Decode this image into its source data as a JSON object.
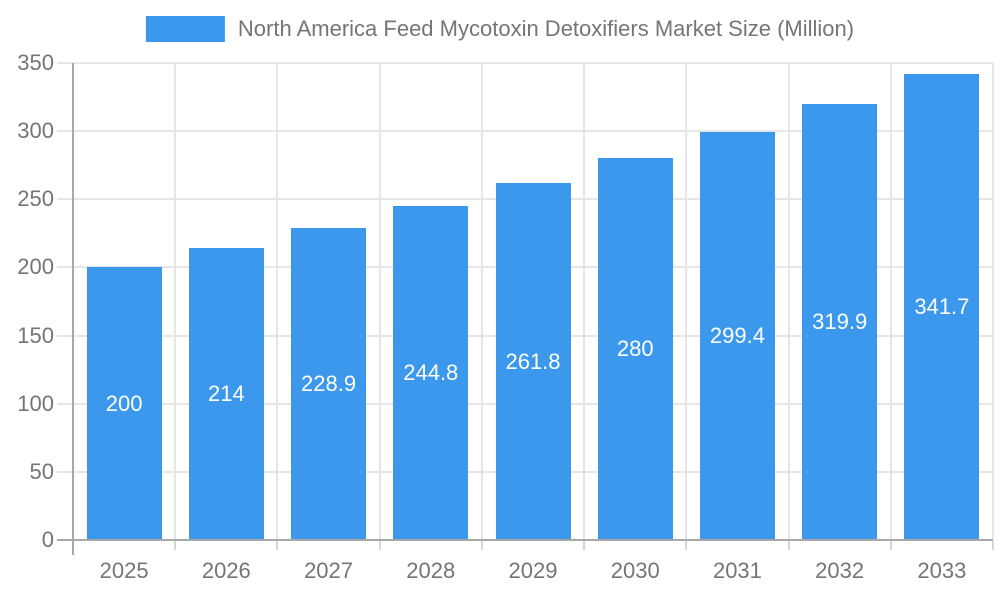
{
  "legend": {
    "label": "North America Feed Mycotoxin Detoxifiers Market Size (Million)"
  },
  "chart_data": {
    "type": "bar",
    "title": "North America Feed Mycotoxin Detoxifiers Market Size (Million)",
    "legend_position": "top",
    "categories": [
      "2025",
      "2026",
      "2027",
      "2028",
      "2029",
      "2030",
      "2031",
      "2032",
      "2033"
    ],
    "values": [
      200,
      214,
      228.9,
      244.8,
      261.8,
      280,
      299.4,
      319.9,
      341.7
    ],
    "value_labels": [
      "200",
      "214",
      "228.9",
      "244.8",
      "261.8",
      "280",
      "299.4",
      "319.9",
      "341.7"
    ],
    "xlabel": "",
    "ylabel": "",
    "ylim": [
      0,
      350
    ],
    "ytick_step": 50,
    "yticks": [
      0,
      50,
      100,
      150,
      200,
      250,
      300,
      350
    ],
    "grid": true
  },
  "style": {
    "bar_color": "#3b98ec",
    "grid_color": "#e6e6e6",
    "axis_color": "#a8a8a8",
    "tick_color": "#d6d6d6",
    "text_color": "#757575",
    "value_label_color": "#ffffff",
    "background": "#ffffff"
  }
}
